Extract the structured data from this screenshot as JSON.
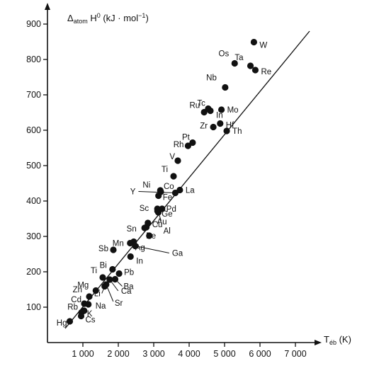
{
  "chart_data": {
    "type": "scatter",
    "title": "",
    "xlabel": "T_éb (K)",
    "ylabel": "Δatom H⁰ (kJ · mol⁻¹)",
    "xlim": [
      0,
      7400
    ],
    "ylim": [
      0,
      920
    ],
    "x_ticks": [
      1000,
      2000,
      3000,
      4000,
      5000,
      6000,
      7000
    ],
    "x_tick_labels": [
      "1 000",
      "2 000",
      "3 000",
      "4 000",
      "5 000",
      "6 000",
      "7 000"
    ],
    "y_ticks": [
      100,
      200,
      300,
      400,
      500,
      600,
      700,
      800,
      900
    ],
    "y_tick_labels": [
      "100",
      "200",
      "300",
      "400",
      "500",
      "600",
      "700",
      "800",
      "900"
    ],
    "grid": false,
    "trend_line": {
      "x": [
        500,
        7400
      ],
      "y": [
        40,
        880
      ]
    },
    "points": [
      {
        "label": "Hg",
        "x": 630,
        "y": 60
      },
      {
        "label": "Cs",
        "x": 950,
        "y": 75
      },
      {
        "label": "Rb",
        "x": 960,
        "y": 85
      },
      {
        "label": "K",
        "x": 1035,
        "y": 90
      },
      {
        "label": "Cd",
        "x": 1040,
        "y": 110
      },
      {
        "label": "Na",
        "x": 1155,
        "y": 108
      },
      {
        "label": "Zn",
        "x": 1180,
        "y": 130
      },
      {
        "label": "Mg",
        "x": 1366,
        "y": 147
      },
      {
        "label": "Li",
        "x": 1615,
        "y": 159
      },
      {
        "label": "Sr",
        "x": 1657,
        "y": 164
      },
      {
        "label": "Ca",
        "x": 1757,
        "y": 178
      },
      {
        "label": "Ba",
        "x": 1910,
        "y": 179
      },
      {
        "label": "Pb",
        "x": 2022,
        "y": 195
      },
      {
        "label": "Ti",
        "x": 1560,
        "y": 184
      },
      {
        "label": "Bi",
        "x": 1837,
        "y": 207
      },
      {
        "label": "In",
        "x": 2345,
        "y": 243
      },
      {
        "label": "Sb",
        "x": 1860,
        "y": 262
      },
      {
        "label": "Ag",
        "x": 2435,
        "y": 285
      },
      {
        "label": "Ge",
        "x": 3106,
        "y": 372
      },
      {
        "label": "Mn",
        "x": 2335,
        "y": 281
      },
      {
        "label": "Sn",
        "x": 2875,
        "y": 302
      },
      {
        "label": "Be",
        "x": 2742,
        "y": 324
      },
      {
        "label": "Al",
        "x": 2792,
        "y": 326
      },
      {
        "label": "Cu",
        "x": 2835,
        "y": 338
      },
      {
        "label": "Au",
        "x": 3130,
        "y": 368
      },
      {
        "label": "Ga",
        "x": 2477,
        "y": 273
      },
      {
        "label": "Sc",
        "x": 3103,
        "y": 378
      },
      {
        "label": "Pd",
        "x": 3236,
        "y": 378
      },
      {
        "label": "Y",
        "x": 3609,
        "y": 423
      },
      {
        "label": "Fe",
        "x": 3134,
        "y": 415
      },
      {
        "label": "Co",
        "x": 3200,
        "y": 426
      },
      {
        "label": "Ni",
        "x": 3186,
        "y": 430
      },
      {
        "label": "La",
        "x": 3737,
        "y": 431
      },
      {
        "label": "Ti",
        "x": 3560,
        "y": 470
      },
      {
        "label": "V",
        "x": 3680,
        "y": 514
      },
      {
        "label": "Rh",
        "x": 3968,
        "y": 556
      },
      {
        "label": "Pt",
        "x": 4098,
        "y": 565
      },
      {
        "label": "Th",
        "x": 5061,
        "y": 598
      },
      {
        "label": "Zr",
        "x": 4682,
        "y": 609
      },
      {
        "label": "Ru",
        "x": 4423,
        "y": 651
      },
      {
        "label": "In",
        "x": 4600,
        "y": 655
      },
      {
        "label": "Tc",
        "x": 4538,
        "y": 661
      },
      {
        "label": "Nb",
        "x": 5017,
        "y": 721
      },
      {
        "label": "Ta",
        "x": 5731,
        "y": 782
      },
      {
        "label": "Os",
        "x": 5285,
        "y": 789
      },
      {
        "label": "Re",
        "x": 5869,
        "y": 770
      },
      {
        "label": "W",
        "x": 5828,
        "y": 849
      },
      {
        "label": "Mo",
        "x": 4912,
        "y": 658
      },
      {
        "label": "Hf",
        "x": 4876,
        "y": 619
      }
    ]
  }
}
